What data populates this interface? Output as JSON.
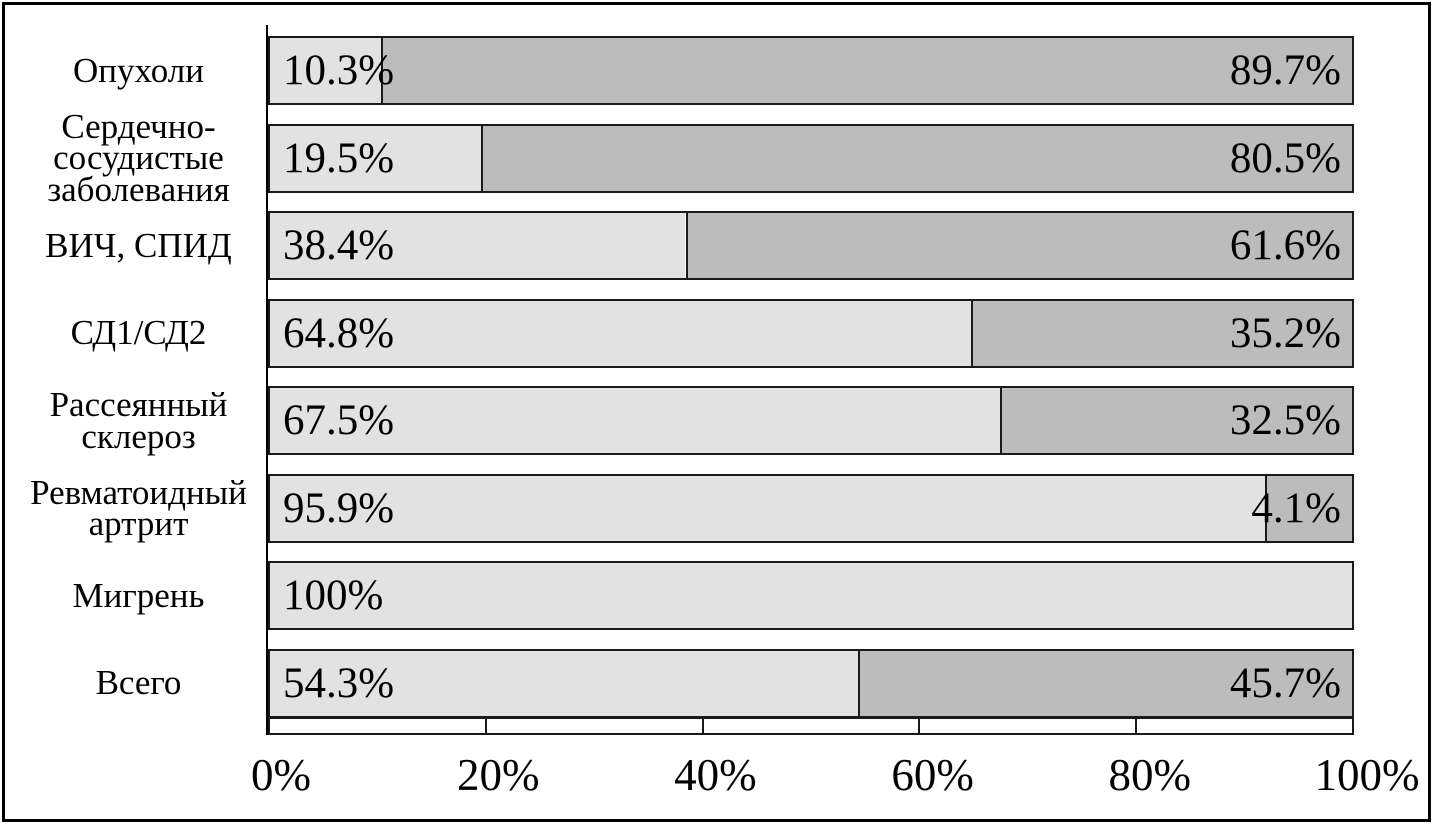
{
  "figure": {
    "description": "horizontal stacked bar chart, grayscale, framed",
    "colors": {
      "light_segment": "#e2e2e2",
      "dark_segment": "#bcbcbc",
      "border": "#1a1a1a",
      "background": "#ffffff"
    }
  },
  "chart_data": {
    "type": "bar",
    "orientation": "horizontal",
    "stacked": true,
    "xlim": [
      0,
      100
    ],
    "grid": false,
    "legend": null,
    "x_ticks": [
      "0%",
      "20%",
      "40%",
      "60%",
      "80%",
      "100%"
    ],
    "x_tick_values": [
      0,
      20,
      40,
      60,
      80,
      100
    ],
    "categories": [
      "Опухоли",
      "Сердечно-сосудистые заболевания",
      "ВИЧ, СПИД",
      "СД1/СД2",
      "Рассеянный склероз",
      "Ревматоидный артрит",
      "Мигрень",
      "Всего"
    ],
    "series": [
      {
        "name": "light",
        "values": [
          10.3,
          19.5,
          38.4,
          64.8,
          67.5,
          95.9,
          100,
          54.3
        ]
      },
      {
        "name": "dark",
        "values": [
          89.7,
          80.5,
          61.6,
          35.2,
          32.5,
          4.1,
          null,
          45.7
        ]
      }
    ],
    "rows": [
      {
        "label_lines": [
          "Опухоли"
        ],
        "light_value": 10.3,
        "light_label": "10.3%",
        "dark_value": 89.7,
        "dark_label": "89.7%"
      },
      {
        "label_lines": [
          "Сердечно-",
          "сосудистые",
          "заболевания"
        ],
        "light_value": 19.5,
        "light_label": "19.5%",
        "dark_value": 80.5,
        "dark_label": "80.5%"
      },
      {
        "label_lines": [
          "ВИЧ, СПИД"
        ],
        "light_value": 38.4,
        "light_label": "38.4%",
        "dark_value": 61.6,
        "dark_label": "61.6%"
      },
      {
        "label_lines": [
          "СД1/СД2"
        ],
        "light_value": 64.8,
        "light_label": "64.8%",
        "dark_value": 35.2,
        "dark_label": "35.2%"
      },
      {
        "label_lines": [
          "Рассеянный",
          "склероз"
        ],
        "light_value": 67.5,
        "light_label": "67.5%",
        "dark_value": 32.5,
        "dark_label": "32.5%"
      },
      {
        "label_lines": [
          "Ревматоидный",
          "артрит"
        ],
        "light_value": 95.9,
        "light_label": "95.9%",
        "dark_value": 4.1,
        "dark_label": "4.1%"
      },
      {
        "label_lines": [
          "Мигрень"
        ],
        "light_value": 100,
        "light_label": "100%",
        "dark_value": null,
        "dark_label": null
      },
      {
        "label_lines": [
          "Всего"
        ],
        "light_value": 54.3,
        "light_label": "54.3%",
        "dark_value": 45.7,
        "dark_label": "45.7%"
      }
    ]
  }
}
